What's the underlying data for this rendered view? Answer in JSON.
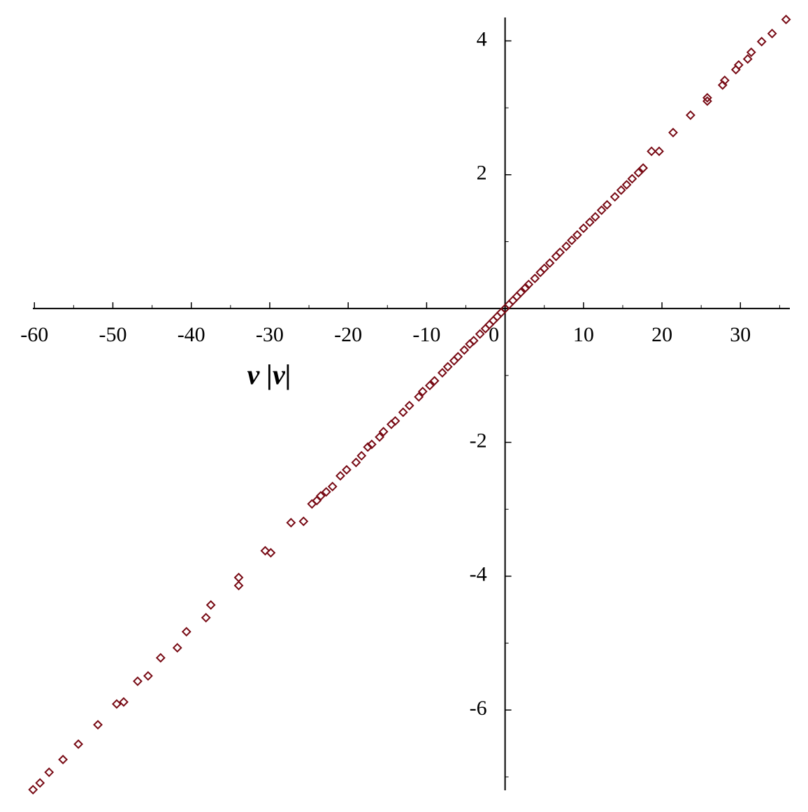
{
  "chart_data": {
    "type": "scatter",
    "x_label": "v |v|",
    "color": "#780a14",
    "marker": "diamond",
    "xlim": [
      -60.2,
      36.3
    ],
    "ylim": [
      -7.2,
      4.35
    ],
    "xticks": [
      -60,
      -50,
      -40,
      -30,
      -20,
      -10,
      0,
      10,
      20,
      30
    ],
    "yticks": [
      -6,
      -4,
      -2,
      2,
      4
    ],
    "xminorticks": [
      -55,
      -45,
      -35,
      -25,
      -15,
      -5,
      5,
      15,
      25,
      35
    ],
    "yminorticks": [
      -7,
      -5,
      -3,
      -1,
      1,
      3
    ],
    "series": [
      {
        "name": "points",
        "color": "#780a14",
        "x": [
          -60.18,
          -59.29,
          -58.13,
          -56.36,
          -54.4,
          -51.91,
          -49.51,
          -48.62,
          -46.84,
          -45.51,
          -43.91,
          -41.78,
          -40.62,
          -38.13,
          -37.51,
          -33.96,
          -33.96,
          -30.58,
          -29.87,
          -27.29,
          -25.69,
          -24.62,
          -24,
          -23.5,
          -22.8,
          -22,
          -21,
          -20.2,
          -19,
          -18.3,
          -17.5,
          -17,
          -16,
          -15.5,
          -14.5,
          -14,
          -13,
          -12.2,
          -11,
          -10.5,
          -9.6,
          -9,
          -8,
          -7.3,
          -6.5,
          -6,
          -5.2,
          -4.5,
          -4,
          -3.2,
          -2.5,
          -2,
          -1.5,
          -1,
          -0.5,
          0,
          0.5,
          1,
          1.5,
          2,
          2.6,
          3,
          3.8,
          4.5,
          5,
          5.7,
          6.5,
          7,
          7.8,
          8.5,
          9.2,
          10,
          10.8,
          11.5,
          12.3,
          13,
          14,
          14.8,
          15.5,
          16.2,
          17,
          17.6,
          18.67,
          19.64,
          21.42,
          23.64,
          25.78,
          25.78,
          27.73,
          28.0,
          29.42,
          29.78,
          30.93,
          31.38,
          32.71,
          34.04,
          35.82
        ],
        "values": [
          -7.19,
          -7.09,
          -6.93,
          -6.74,
          -6.51,
          -6.22,
          -5.91,
          -5.88,
          -5.57,
          -5.49,
          -5.22,
          -5.07,
          -4.83,
          -4.62,
          -4.43,
          -4.02,
          -4.14,
          -3.62,
          -3.65,
          -3.2,
          -3.18,
          -2.92,
          -2.87,
          -2.8,
          -2.74,
          -2.66,
          -2.5,
          -2.41,
          -2.3,
          -2.2,
          -2.07,
          -2.03,
          -1.92,
          -1.84,
          -1.73,
          -1.68,
          -1.55,
          -1.45,
          -1.32,
          -1.24,
          -1.15,
          -1.08,
          -0.96,
          -0.87,
          -0.78,
          -0.72,
          -0.62,
          -0.53,
          -0.48,
          -0.38,
          -0.3,
          -0.24,
          -0.18,
          -0.12,
          -0.06,
          0,
          0.06,
          0.12,
          0.18,
          0.24,
          0.31,
          0.36,
          0.45,
          0.54,
          0.6,
          0.68,
          0.78,
          0.84,
          0.93,
          1.02,
          1.1,
          1.2,
          1.29,
          1.37,
          1.47,
          1.55,
          1.67,
          1.77,
          1.85,
          1.94,
          2.03,
          2.1,
          2.35,
          2.35,
          2.63,
          2.89,
          3.1,
          3.15,
          3.34,
          3.41,
          3.57,
          3.64,
          3.73,
          3.83,
          3.99,
          4.11,
          4.32
        ]
      }
    ]
  }
}
